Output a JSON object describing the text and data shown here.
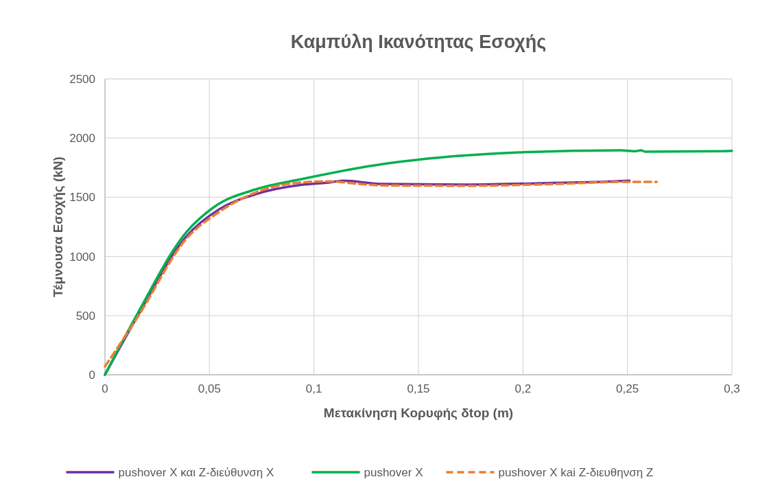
{
  "chart_data": {
    "type": "line",
    "title": "Καμπύλη Ικανότητας Εσοχής",
    "xlabel": "Μετακίνηση Κορυφής δtop (m)",
    "ylabel": "Τέμνουσα Εσοχής (kN)",
    "xlim": [
      0,
      0.3
    ],
    "ylim": [
      0,
      2500
    ],
    "xticks": [
      0,
      {
        "value": 0.05,
        "label": "0,05"
      },
      {
        "value": 0.1,
        "label": "0,1"
      },
      {
        "value": 0.15,
        "label": "0,15"
      },
      {
        "value": 0.2,
        "label": "0,2"
      },
      {
        "value": 0.25,
        "label": "0,25"
      },
      {
        "value": 0.3,
        "label": "0,3"
      }
    ],
    "yticks": [
      0,
      500,
      1000,
      1500,
      2000,
      2500
    ],
    "grid": true,
    "legend": "bottom",
    "series": [
      {
        "name": "pushover X και Z-διεύθυνση X",
        "color": "#7030a0",
        "line_style": "solid",
        "x": [
          0,
          0.0154,
          0.039,
          0.0548,
          0.072,
          0.094,
          0.107,
          0.114,
          0.133,
          0.173,
          0.212,
          0.249,
          0.251
        ],
        "values": [
          0,
          490,
          1170,
          1400,
          1525,
          1605,
          1624,
          1640,
          1612,
          1607,
          1620,
          1638,
          1640
        ]
      },
      {
        "name": "pushover X",
        "color": "#00b050",
        "line_style": "solid",
        "x": [
          0,
          0.0154,
          0.039,
          0.0525,
          0.072,
          0.094,
          0.133,
          0.149,
          0.198,
          0.247,
          0.254,
          0.2564,
          0.2587,
          0.296,
          0.3
        ],
        "values": [
          0,
          510,
          1206,
          1421,
          1566,
          1653,
          1781,
          1816,
          1879,
          1897,
          1889,
          1897,
          1885,
          1890,
          1892
        ]
      },
      {
        "name": "pushover X kai Z-διευθηνση Z",
        "color": "#ed7d31",
        "line_style": "dashed",
        "x": [
          0,
          0.0154,
          0.039,
          0.055,
          0.072,
          0.094,
          0.107,
          0.12,
          0.133,
          0.173,
          0.212,
          0.249,
          0.264
        ],
        "values": [
          70,
          480,
          1150,
          1380,
          1540,
          1625,
          1635,
          1615,
          1600,
          1597,
          1610,
          1630,
          1630
        ]
      }
    ]
  }
}
